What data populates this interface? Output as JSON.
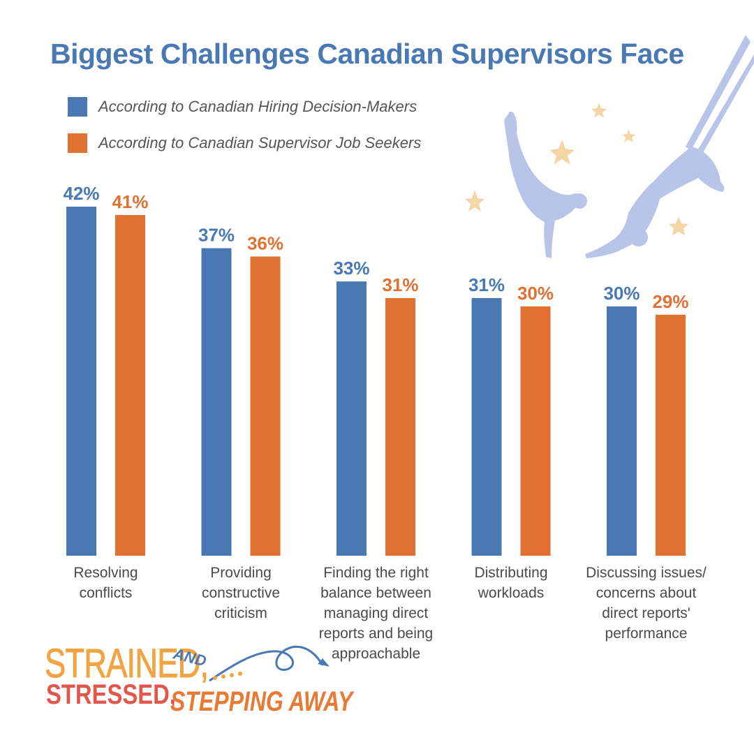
{
  "title": "Biggest Challenges Canadian Supervisors Face",
  "colors": {
    "title": "#4a78b3",
    "series1": "#4a78b3",
    "series2": "#e07132",
    "decor": "#b8c5e8",
    "star": "#f2d6a6"
  },
  "logo": {
    "line1": "STRAINED,",
    "line2": "STRESSED,",
    "line3": "AND",
    "line4": "STEPPING AWAY"
  },
  "chart_data": {
    "type": "bar",
    "title": "Biggest Challenges Canadian Supervisors Face",
    "categories": [
      [
        "Resolving",
        "conflicts"
      ],
      [
        "Providing",
        "constructive",
        "criticism"
      ],
      [
        "Finding the right",
        "balance between",
        "managing direct",
        "reports and being",
        "approachable"
      ],
      [
        "Distributing",
        "workloads"
      ],
      [
        "Discussing issues/",
        "concerns about",
        "direct reports'",
        "performance"
      ]
    ],
    "series": [
      {
        "name": "According to Canadian Hiring Decision-Makers",
        "values": [
          42,
          37,
          33,
          31,
          30
        ],
        "labels": [
          "42%",
          "37%",
          "33%",
          "31%",
          "30%"
        ],
        "color": "#4a78b3"
      },
      {
        "name": "According to Canadian Supervisor Job Seekers",
        "values": [
          41,
          36,
          31,
          30,
          29
        ],
        "labels": [
          "41%",
          "36%",
          "31%",
          "30%",
          "29%"
        ],
        "color": "#e07132"
      }
    ],
    "ylim": [
      0,
      42
    ],
    "legend": "top-left",
    "grid": false,
    "xlabel": "",
    "ylabel": ""
  }
}
